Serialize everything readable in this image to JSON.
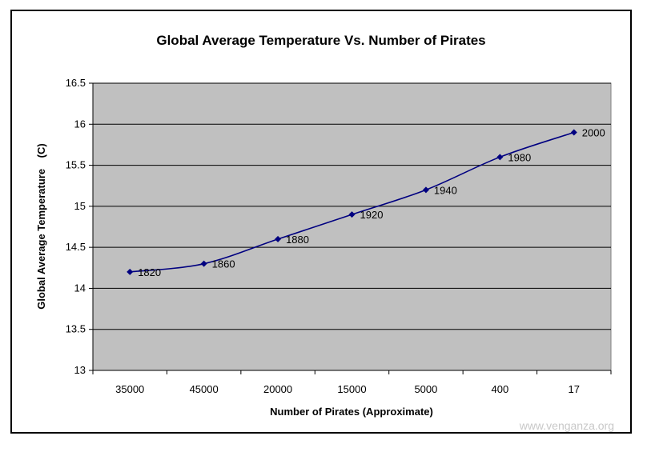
{
  "chart_data": {
    "type": "line",
    "title": "Global Average Temperature Vs. Number of Pirates",
    "xlabel": "Number of Pirates (Approximate)",
    "ylabel": "Global Average Temperature",
    "ylabel_unit": "(C)",
    "categories": [
      "35000",
      "45000",
      "20000",
      "15000",
      "5000",
      "400",
      "17"
    ],
    "series": [
      {
        "values": [
          14.2,
          14.3,
          14.6,
          14.9,
          15.2,
          15.6,
          15.9
        ],
        "point_labels": [
          "1820",
          "1860",
          "1880",
          "1920",
          "1940",
          "1980",
          "2000"
        ]
      }
    ],
    "ylim": [
      13,
      16.5
    ],
    "ytick_step": 0.5,
    "yticks": [
      "13",
      "13.5",
      "14",
      "14.5",
      "15",
      "15.5",
      "16",
      "16.5"
    ],
    "grid": true,
    "legend": "none",
    "colors": {
      "plot_background": "#c0c0c0",
      "line": "#000080",
      "gridline": "#000000"
    }
  },
  "watermark": "www.venganza.org"
}
